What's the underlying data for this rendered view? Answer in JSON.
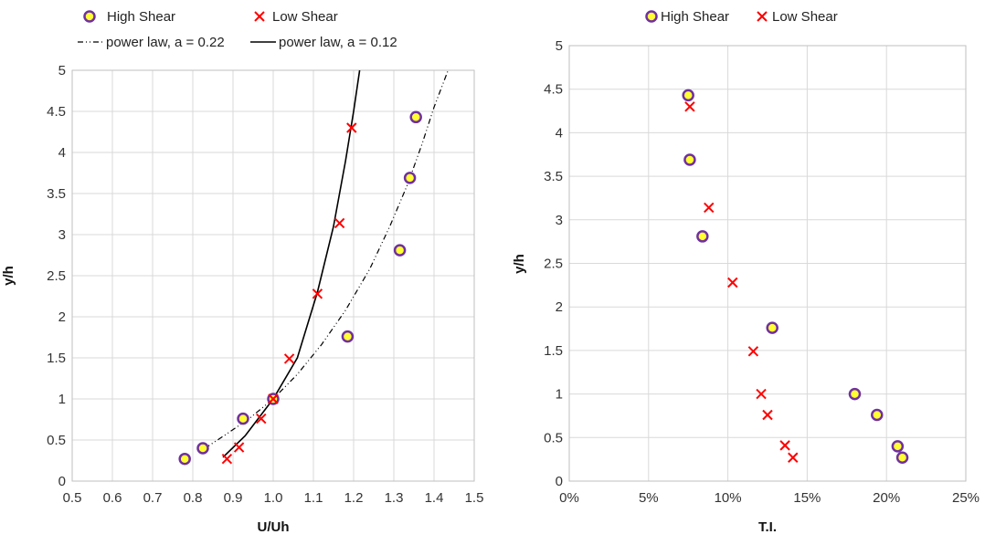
{
  "chart_data": [
    {
      "type": "scatter",
      "xlabel": "U/Uh",
      "ylabel": "y/h",
      "xlim": [
        0.5,
        1.5
      ],
      "ylim": [
        0,
        5
      ],
      "x_ticks": [
        "0.5",
        "0.6",
        "0.7",
        "0.8",
        "0.9",
        "1.0",
        "1.1",
        "1.2",
        "1.3",
        "1.4",
        "1.5"
      ],
      "y_ticks": [
        "0",
        "0.5",
        "1",
        "1.5",
        "2",
        "2.5",
        "3",
        "3.5",
        "4",
        "4.5",
        "5"
      ],
      "grid": true,
      "legend_position": "top",
      "series": [
        {
          "name": "High Shear",
          "marker": "circle",
          "color": "#FFFF33",
          "edge_color": "#7030A0",
          "x": [
            0.78,
            0.825,
            0.925,
            1.0,
            1.185,
            1.315,
            1.34,
            1.355
          ],
          "y": [
            0.27,
            0.4,
            0.76,
            1.0,
            1.76,
            2.81,
            3.69,
            4.43
          ]
        },
        {
          "name": "Low Shear",
          "marker": "x",
          "color": "#FF0000",
          "x": [
            0.885,
            0.915,
            0.97,
            1.0,
            1.04,
            1.11,
            1.165,
            1.195
          ],
          "y": [
            0.27,
            0.41,
            0.76,
            1.0,
            1.49,
            2.28,
            3.14,
            4.3
          ]
        },
        {
          "name": "power law, a = 0.22",
          "line": "dash-dot",
          "color": "#000000",
          "x": [
            0.83,
            0.88,
            0.94,
            1.0,
            1.06,
            1.12,
            1.18,
            1.24,
            1.29,
            1.335,
            1.37,
            1.4,
            1.435
          ],
          "y": [
            0.4,
            0.56,
            0.76,
            1.0,
            1.3,
            1.66,
            2.08,
            2.58,
            3.1,
            3.62,
            4.1,
            4.55,
            5.0
          ]
        },
        {
          "name": "power law, a = 0.12",
          "line": "solid",
          "color": "#000000",
          "x": [
            0.875,
            0.93,
            1.0,
            1.06,
            1.11,
            1.15,
            1.18,
            1.2,
            1.215
          ],
          "y": [
            0.29,
            0.55,
            1.0,
            1.5,
            2.3,
            3.1,
            3.9,
            4.5,
            5.0
          ]
        }
      ]
    },
    {
      "type": "scatter",
      "xlabel": "T.I.",
      "ylabel": "y/h",
      "xlim": [
        0,
        25
      ],
      "ylim": [
        0,
        5
      ],
      "x_ticks": [
        "0%",
        "5%",
        "10%",
        "15%",
        "20%",
        "25%"
      ],
      "y_ticks": [
        "0",
        "0.5",
        "1",
        "1.5",
        "2",
        "2.5",
        "3",
        "3.5",
        "4",
        "4.5",
        "5"
      ],
      "grid": true,
      "legend_position": "top",
      "series": [
        {
          "name": "High Shear",
          "marker": "circle",
          "color": "#FFFF33",
          "edge_color": "#7030A0",
          "x": [
            21.0,
            20.7,
            19.4,
            18.0,
            12.8,
            8.4,
            7.6,
            7.5
          ],
          "y": [
            0.27,
            0.4,
            0.76,
            1.0,
            1.76,
            2.81,
            3.69,
            4.43
          ]
        },
        {
          "name": "Low Shear",
          "marker": "x",
          "color": "#FF0000",
          "x": [
            14.1,
            13.6,
            12.5,
            12.1,
            11.6,
            10.3,
            8.8,
            7.6
          ],
          "y": [
            0.27,
            0.41,
            0.76,
            1.0,
            1.49,
            2.28,
            3.14,
            4.3
          ]
        }
      ]
    }
  ]
}
